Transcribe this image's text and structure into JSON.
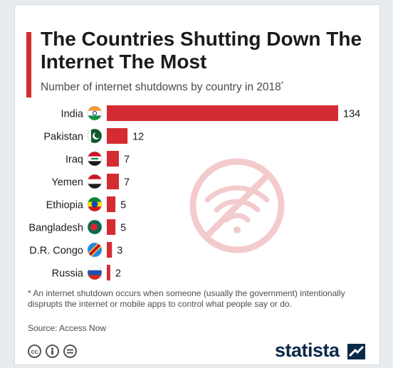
{
  "header": {
    "title": "The Countries Shutting Down The Internet The Most",
    "subtitle": "Number of internet shutdowns by country in 2018",
    "subtitle_mark": "*"
  },
  "chart_data": {
    "type": "bar",
    "orientation": "horizontal",
    "categories": [
      "India",
      "Pakistan",
      "Iraq",
      "Yemen",
      "Ethiopia",
      "Bangladesh",
      "D.R. Congo",
      "Russia"
    ],
    "values": [
      134,
      12,
      7,
      7,
      5,
      5,
      3,
      2
    ],
    "flags": [
      "india-flag-icon",
      "pakistan-flag-icon",
      "iraq-flag-icon",
      "yemen-flag-icon",
      "ethiopia-flag-icon",
      "bangladesh-flag-icon",
      "dr-congo-flag-icon",
      "russia-flag-icon"
    ],
    "title": "The Countries Shutting Down The Internet The Most",
    "bar_color": "#d52b32",
    "grid": false,
    "xlim": [
      0,
      134
    ]
  },
  "decoration": {
    "icon": "no-wifi-icon",
    "color": "#f2c8ca"
  },
  "footer": {
    "footnote": "* An internet shutdown occurs when someone (usually the government) intentionally disprupts the internet or mobile apps to control what people say or do.",
    "source": "Source: Access Now",
    "license_icons": [
      "cc-icon",
      "attribution-icon",
      "no-derivatives-icon"
    ],
    "brand": "statista",
    "brand_color": "#0b2a4a"
  }
}
